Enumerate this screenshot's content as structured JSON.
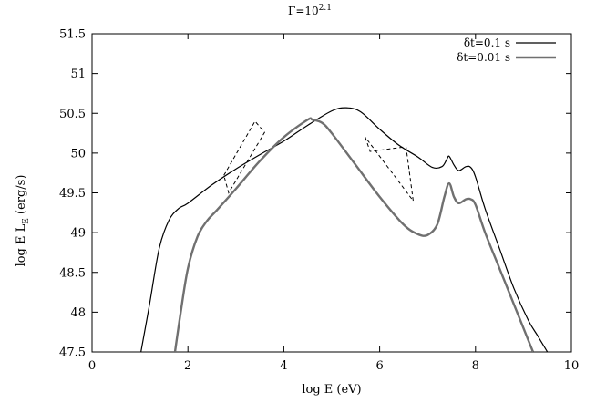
{
  "chart_data": {
    "type": "line",
    "title_base": "Γ=10",
    "title_exponent": "2.1",
    "xlabel": "log  E (eV)",
    "ylabel_base": "log E L",
    "ylabel_sub": "E",
    "ylabel_tail": " (erg/s)",
    "xlim": [
      0,
      10
    ],
    "ylim": [
      47.5,
      51.5
    ],
    "xticks": [
      "0",
      "2",
      "4",
      "6",
      "8",
      "10"
    ],
    "yticks": [
      "47.5",
      "48",
      "48.5",
      "49",
      "49.5",
      "50",
      "50.5",
      "51",
      "51.5"
    ],
    "grid": false,
    "legend_position": "top-right",
    "series": [
      {
        "name": "δt=0.1 s",
        "color": "#000000",
        "x": [
          1.02,
          1.2,
          1.4,
          1.6,
          1.8,
          2.0,
          2.5,
          3.0,
          3.5,
          4.0,
          4.5,
          5.0,
          5.3,
          5.6,
          6.0,
          6.4,
          6.8,
          7.1,
          7.3,
          7.4,
          7.45,
          7.55,
          7.65,
          7.8,
          7.9,
          8.0,
          8.2,
          8.5,
          8.8,
          9.1,
          9.3,
          9.5
        ],
        "y": [
          47.5,
          48.1,
          48.8,
          49.15,
          49.3,
          49.37,
          49.6,
          49.8,
          49.98,
          50.15,
          50.35,
          50.53,
          50.57,
          50.52,
          50.3,
          50.1,
          49.95,
          49.82,
          49.83,
          49.92,
          49.96,
          49.85,
          49.78,
          49.83,
          49.82,
          49.7,
          49.3,
          48.8,
          48.3,
          47.9,
          47.7,
          47.5
        ]
      },
      {
        "name": "δt=0.01 s",
        "color": "#707070",
        "x": [
          1.73,
          1.85,
          2.0,
          2.2,
          2.4,
          2.6,
          3.0,
          3.5,
          4.0,
          4.5,
          4.6,
          4.8,
          5.0,
          5.5,
          6.0,
          6.5,
          6.8,
          7.0,
          7.2,
          7.35,
          7.45,
          7.55,
          7.65,
          7.8,
          7.9,
          8.0,
          8.2,
          8.5,
          8.8,
          9.0,
          9.2
        ],
        "y": [
          47.5,
          48.0,
          48.55,
          48.95,
          49.15,
          49.28,
          49.55,
          49.9,
          50.2,
          50.42,
          50.42,
          50.38,
          50.25,
          49.85,
          49.45,
          49.1,
          48.98,
          48.97,
          49.1,
          49.45,
          49.62,
          49.45,
          49.37,
          49.42,
          49.42,
          49.35,
          49.0,
          48.55,
          48.1,
          47.8,
          47.5
        ]
      }
    ],
    "dashed_segments": [
      {
        "x": [
          2.75,
          3.4,
          3.6,
          2.85,
          2.75
        ],
        "y": [
          49.72,
          50.4,
          50.26,
          49.5,
          49.72
        ]
      },
      {
        "x": [
          5.7,
          5.8,
          6.55,
          6.7,
          5.7
        ],
        "y": [
          50.2,
          50.02,
          50.08,
          49.4,
          50.2
        ]
      }
    ]
  }
}
